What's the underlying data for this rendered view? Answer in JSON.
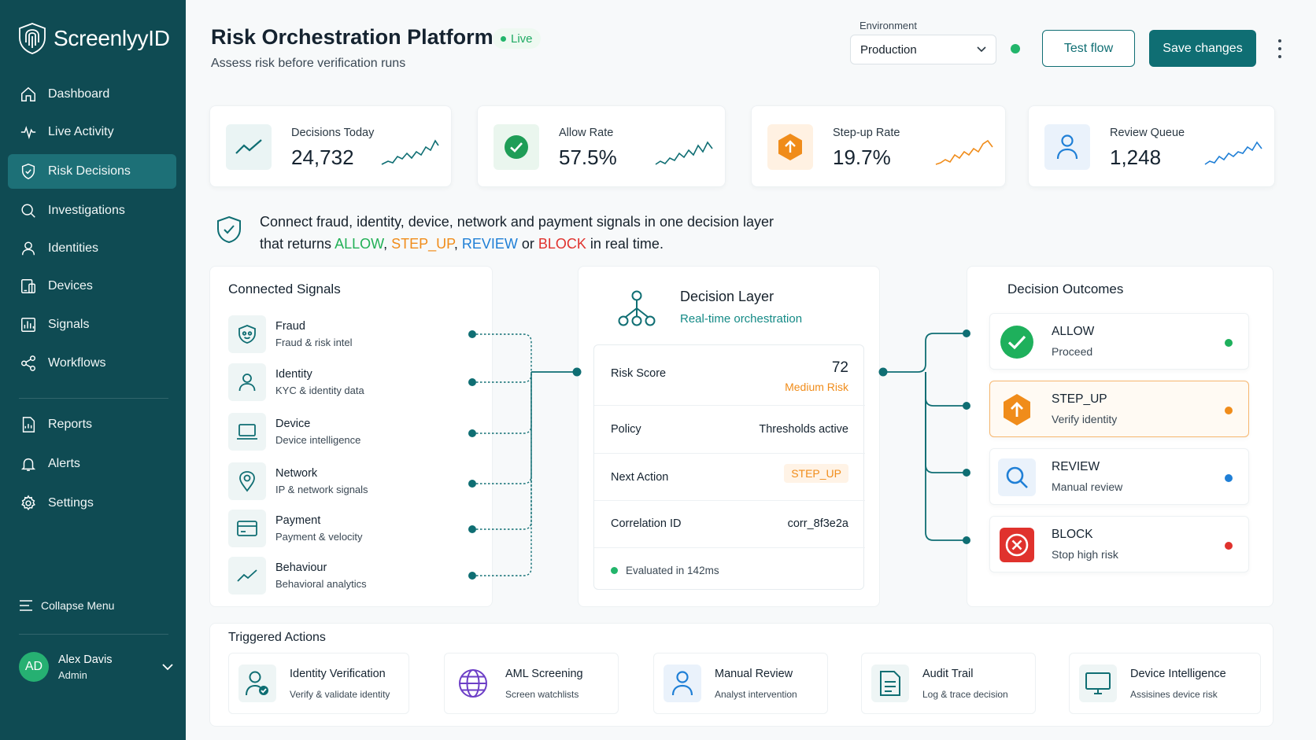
{
  "brand": {
    "name": "ScreenlyyID",
    "logo_icon": "fingerprint-shield-icon"
  },
  "sidebar": {
    "items": [
      {
        "label": "Dashboard",
        "icon": "home-icon"
      },
      {
        "label": "Live Activity",
        "icon": "pulse-icon"
      },
      {
        "label": "Risk Decisions",
        "icon": "shield-check-icon",
        "active": true
      },
      {
        "label": "Investigations",
        "icon": "search-icon"
      },
      {
        "label": "Identities",
        "icon": "user-icon"
      },
      {
        "label": "Devices",
        "icon": "devices-icon"
      },
      {
        "label": "Signals",
        "icon": "signals-icon"
      },
      {
        "label": "Workflows",
        "icon": "share-icon"
      },
      {
        "label": "Reports",
        "icon": "report-icon"
      },
      {
        "label": "Alerts",
        "icon": "bell-icon"
      },
      {
        "label": "Settings",
        "icon": "gear-icon"
      }
    ],
    "collapse_label": "Collapse Menu",
    "user": {
      "initials": "AD",
      "name": "Alex Davis",
      "role": "Admin"
    }
  },
  "header": {
    "title": "Risk Orchestration Platform",
    "status": "Live",
    "subtitle": "Assess risk before verification runs",
    "environment_label": "Environment",
    "environment_value": "Production",
    "test_button": "Test flow",
    "save_button": "Save changes"
  },
  "kpis": [
    {
      "label": "Decisions Today",
      "value": "24,732",
      "icon": "trend-icon",
      "color": "#0f6e73"
    },
    {
      "label": "Allow Rate",
      "value": "57.5%",
      "icon": "check-circle-icon",
      "color": "#1f9d57"
    },
    {
      "label": "Step-up Rate",
      "value": "19.7%",
      "icon": "hexagon-arrow-icon",
      "color": "#f08c1a"
    },
    {
      "label": "Review Queue",
      "value": "1,248",
      "icon": "user-icon",
      "color": "#1f7fd6"
    }
  ],
  "banner": {
    "line1": "Connect fraud, identity, device, network and payment signals in one decision layer",
    "prefix": "that returns ",
    "allow": "ALLOW",
    "sep1": ", ",
    "step_up": "STEP_UP",
    "sep2": ", ",
    "review": "REVIEW",
    "or": " or ",
    "block": "BLOCK",
    "suffix": " in real time."
  },
  "signals": {
    "title": "Connected Signals",
    "items": [
      {
        "name": "Fraud",
        "desc": "Fraud & risk intel",
        "icon": "fraud-mask-icon"
      },
      {
        "name": "Identity",
        "desc": "KYC & identity data",
        "icon": "user-icon"
      },
      {
        "name": "Device",
        "desc": "Device intelligence",
        "icon": "laptop-icon"
      },
      {
        "name": "Network",
        "desc": "IP & network signals",
        "icon": "location-pin-icon"
      },
      {
        "name": "Payment",
        "desc": "Payment & velocity",
        "icon": "credit-card-icon"
      },
      {
        "name": "Behaviour",
        "desc": "Behavioral analytics",
        "icon": "trend-icon"
      }
    ]
  },
  "decision_layer": {
    "title": "Decision Layer",
    "subtitle": "Real-time orchestration",
    "risk_score_label": "Risk Score",
    "risk_score_value": "72",
    "risk_level": "Medium Risk",
    "policy_label": "Policy",
    "policy_value": "Thresholds active",
    "next_action_label": "Next Action",
    "next_action_value": "STEP_UP",
    "correlation_label": "Correlation ID",
    "correlation_value": "corr_8f3e2a",
    "evaluated": "Evaluated in 142ms"
  },
  "outcomes": {
    "title": "Decision Outcomes",
    "items": [
      {
        "name": "ALLOW",
        "desc": "Proceed",
        "icon": "check-circle-icon",
        "color": "#1eb05c"
      },
      {
        "name": "STEP_UP",
        "desc": "Verify identity",
        "icon": "hexagon-arrow-icon",
        "color": "#f08c1a",
        "selected": true
      },
      {
        "name": "REVIEW",
        "desc": "Manual review",
        "icon": "search-icon",
        "color": "#1f7fd6"
      },
      {
        "name": "BLOCK",
        "desc": "Stop high risk",
        "icon": "x-circle-icon",
        "color": "#e0322d"
      }
    ]
  },
  "actions": {
    "title": "Triggered Actions",
    "items": [
      {
        "name": "Identity Verification",
        "desc": "Verify & validate identity",
        "icon": "user-check-icon"
      },
      {
        "name": "AML Screening",
        "desc": "Screen watchlists",
        "icon": "globe-icon"
      },
      {
        "name": "Manual Review",
        "desc": "Analyst intervention",
        "icon": "user-icon"
      },
      {
        "name": "Audit Trail",
        "desc": "Log & trace decision",
        "icon": "document-icon"
      },
      {
        "name": "Device Intelligence",
        "desc": "Assisines device risk",
        "icon": "monitor-icon"
      }
    ]
  }
}
